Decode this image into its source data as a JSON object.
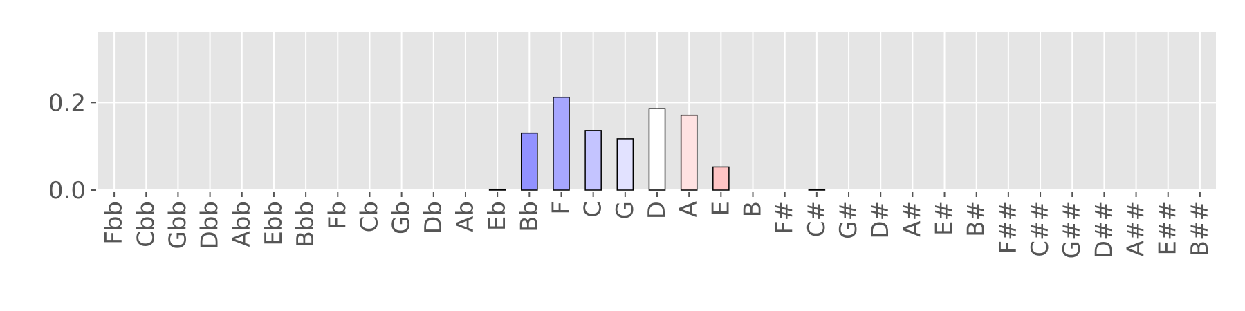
{
  "chart_data": {
    "type": "bar",
    "title": "",
    "xlabel": "",
    "ylabel": "",
    "ylim": [
      0,
      0.36
    ],
    "yticks": [
      0.0,
      0.2
    ],
    "ytick_labels": [
      "0.0",
      "0.2"
    ],
    "grid": true,
    "categories": [
      "Fbb",
      "Cbb",
      "Gbb",
      "Dbb",
      "Abb",
      "Ebb",
      "Bbb",
      "Fb",
      "Cb",
      "Gb",
      "Db",
      "Ab",
      "Eb",
      "Bb",
      "F",
      "C",
      "G",
      "D",
      "A",
      "E",
      "B",
      "F#",
      "C#",
      "G#",
      "D#",
      "A#",
      "E#",
      "B#",
      "F##",
      "C##",
      "G##",
      "D##",
      "A##",
      "E##",
      "B##"
    ],
    "values": [
      0,
      0,
      0,
      0,
      0,
      0,
      0,
      0,
      0,
      0,
      0,
      0,
      0.002,
      0.13,
      0.212,
      0.136,
      0.117,
      0.186,
      0.171,
      0.053,
      0,
      0,
      0.002,
      0,
      0,
      0,
      0,
      0,
      0,
      0,
      0,
      0,
      0,
      0,
      0
    ],
    "bar_colors": [
      "#9090ff",
      "#9090ff",
      "#9090ff",
      "#9090ff",
      "#9090ff",
      "#9090ff",
      "#9090ff",
      "#9090ff",
      "#9090ff",
      "#9090ff",
      "#9090ff",
      "#9090ff",
      "#8a8aff",
      "#9292ff",
      "#a7a7ff",
      "#c4c4ff",
      "#e2e2ff",
      "#ffffff",
      "#ffe2e2",
      "#ffc4c4",
      "#ffa8a8",
      "#ff9a9a",
      "#ff9090",
      "#ff9090",
      "#ff9090",
      "#ff9090",
      "#ff9090",
      "#ff9090",
      "#ff9090",
      "#ff9090",
      "#ff9090",
      "#ff9090",
      "#ff9090",
      "#ff9090",
      "#ff9090"
    ],
    "colors": {
      "plot_background": "#e5e5e5",
      "grid": "#ffffff",
      "bar_edge": "#000000",
      "tick_text": "#555555"
    }
  }
}
